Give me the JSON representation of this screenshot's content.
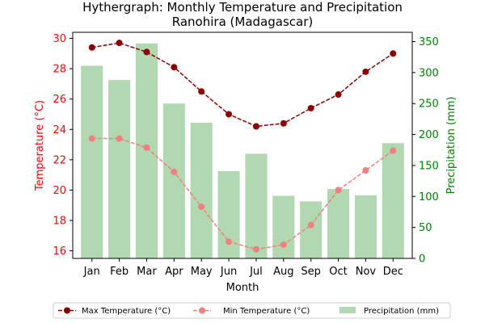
{
  "chart_data": {
    "type": "bar+line",
    "title_line1": "Hythergraph: Monthly Temperature and Precipitation",
    "title_line2": "Ranohira (Madagascar)",
    "xlabel": "Month",
    "ylabel_left": "Temperature (°C)",
    "ylabel_right": "Precipitation (mm)",
    "categories": [
      "Jan",
      "Feb",
      "Mar",
      "Apr",
      "May",
      "Jun",
      "Jul",
      "Aug",
      "Sep",
      "Oct",
      "Nov",
      "Dec"
    ],
    "ylim_left": [
      15.5,
      30.4
    ],
    "ylim_right": [
      0,
      365
    ],
    "yticks_left": [
      16,
      18,
      20,
      22,
      24,
      26,
      28,
      30
    ],
    "yticks_right": [
      0,
      50,
      100,
      150,
      200,
      250,
      300,
      350
    ],
    "series": [
      {
        "name": "Max Temperature (°C)",
        "kind": "line",
        "axis": "left",
        "color": "#8b0000",
        "linestyle": "dashed",
        "values": [
          29.4,
          29.7,
          29.1,
          28.1,
          26.5,
          25.0,
          24.2,
          24.4,
          25.4,
          26.3,
          27.8,
          29.0
        ]
      },
      {
        "name": "Min Temperature (°C)",
        "kind": "line",
        "axis": "left",
        "color": "#f08080",
        "linestyle": "dashed",
        "values": [
          23.4,
          23.4,
          22.8,
          21.2,
          18.9,
          16.6,
          16.1,
          16.4,
          17.7,
          20.0,
          21.3,
          22.6
        ]
      },
      {
        "name": "Precipitation (mm)",
        "kind": "bar",
        "axis": "right",
        "color": "#b2d8b2",
        "values": [
          311,
          288,
          347,
          250,
          219,
          141,
          169,
          101,
          92,
          112,
          102,
          186
        ]
      }
    ],
    "legend_position": "bottom-center",
    "left_axis_color": "#ff0000",
    "right_axis_color": "#008000"
  }
}
